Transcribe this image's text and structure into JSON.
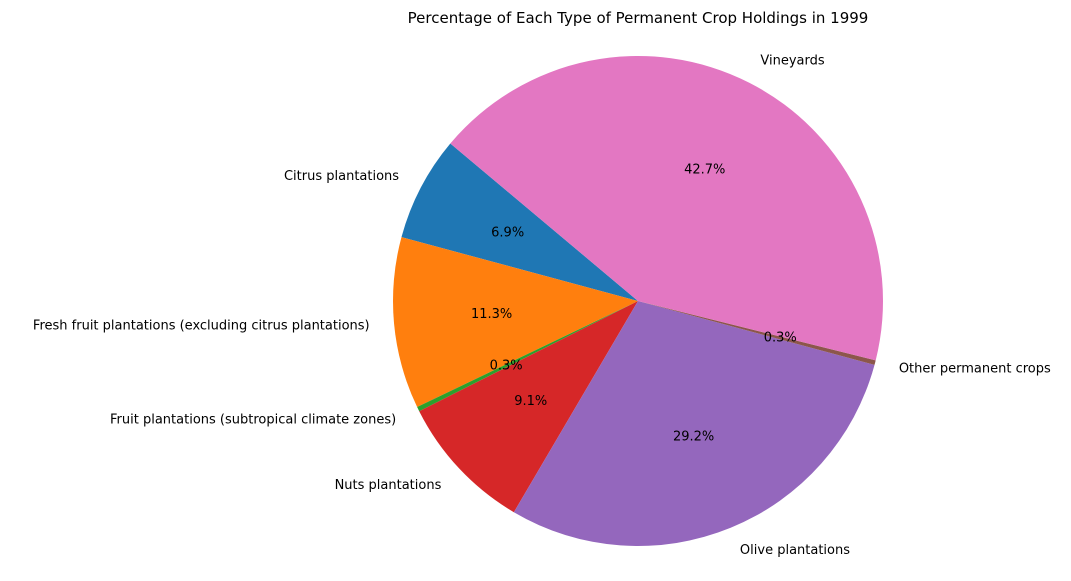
{
  "chart_data": {
    "type": "pie",
    "title": "Percentage of Each Type of Permanent Crop Holdings in 1999",
    "start_angle_deg": 140,
    "direction": "counterclockwise",
    "slices": [
      {
        "label": "Citrus plantations",
        "value": 6.9,
        "pct_label": "6.9%",
        "color": "#1f77b4"
      },
      {
        "label": "Fresh fruit plantations (excluding citrus plantations)",
        "value": 11.3,
        "pct_label": "11.3%",
        "color": "#ff7f0e"
      },
      {
        "label": "Fruit plantations (subtropical climate zones)",
        "value": 0.3,
        "pct_label": "0.3%",
        "color": "#2ca02c"
      },
      {
        "label": "Nuts plantations",
        "value": 9.1,
        "pct_label": "9.1%",
        "color": "#d62728"
      },
      {
        "label": "Olive plantations",
        "value": 29.2,
        "pct_label": "29.2%",
        "color": "#9467bd"
      },
      {
        "label": "Other permanent crops",
        "value": 0.3,
        "pct_label": "0.3%",
        "color": "#8c564b"
      },
      {
        "label": "Vineyards",
        "value": 42.7,
        "pct_label": "42.7%",
        "color": "#e377c2"
      }
    ]
  }
}
